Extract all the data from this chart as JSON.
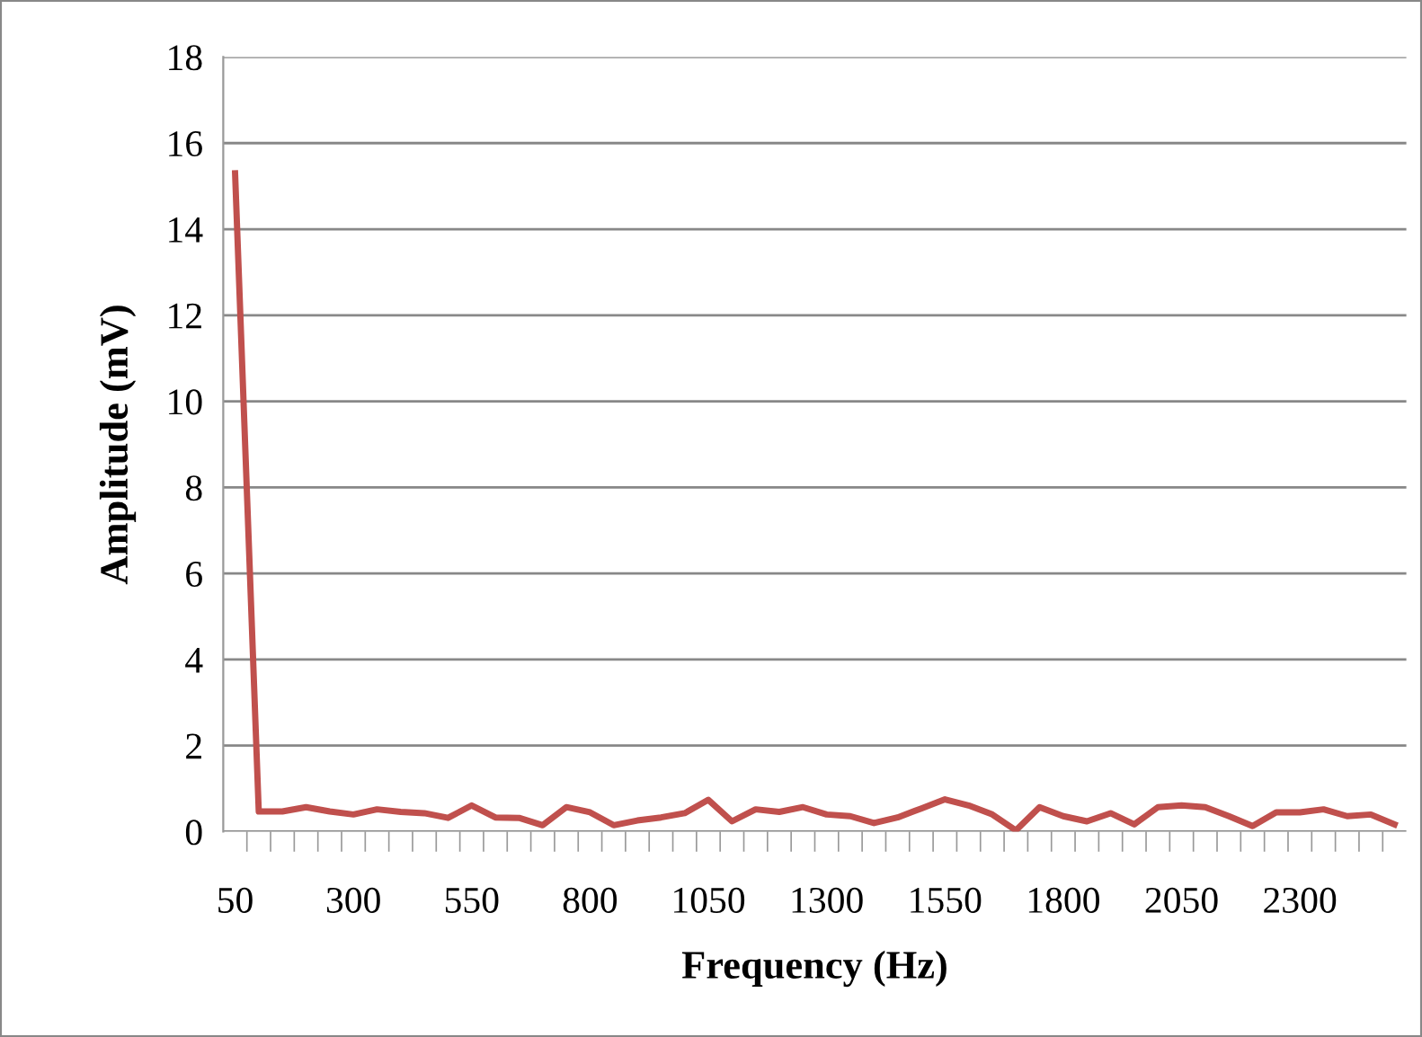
{
  "chart_data": {
    "type": "line",
    "xlabel": "Frequency (Hz)",
    "ylabel": "Amplitude (mV)",
    "categories": [
      "50",
      null,
      null,
      null,
      null,
      "300",
      null,
      null,
      null,
      null,
      "550",
      null,
      null,
      null,
      null,
      "800",
      null,
      null,
      null,
      null,
      "1050",
      null,
      null,
      null,
      null,
      "1300",
      null,
      null,
      null,
      null,
      "1550",
      null,
      null,
      null,
      null,
      "1800",
      null,
      null,
      null,
      null,
      "2050",
      null,
      null,
      null,
      null,
      "2300",
      null,
      null,
      null,
      null
    ],
    "series": [
      {
        "color": "#c0504d",
        "values": [
          15.3,
          0.47,
          0.47,
          0.57,
          0.47,
          0.4,
          0.52,
          0.46,
          0.43,
          0.32,
          0.61,
          0.33,
          0.32,
          0.15,
          0.57,
          0.45,
          0.15,
          0.26,
          0.33,
          0.43,
          0.74,
          0.24,
          0.52,
          0.46,
          0.57,
          0.4,
          0.36,
          0.2,
          0.33,
          0.54,
          0.75,
          0.61,
          0.4,
          0.03,
          0.57,
          0.36,
          0.24,
          0.43,
          0.17,
          0.57,
          0.61,
          0.57,
          0.36,
          0.13,
          0.45,
          0.45,
          0.52,
          0.36,
          0.4,
          0.17
        ]
      }
    ],
    "ylim": [
      0,
      18
    ],
    "yticks": [
      0,
      2,
      4,
      6,
      8,
      10,
      12,
      14,
      16,
      18
    ],
    "grid": "y",
    "marker": "none",
    "line_style": "solid"
  }
}
